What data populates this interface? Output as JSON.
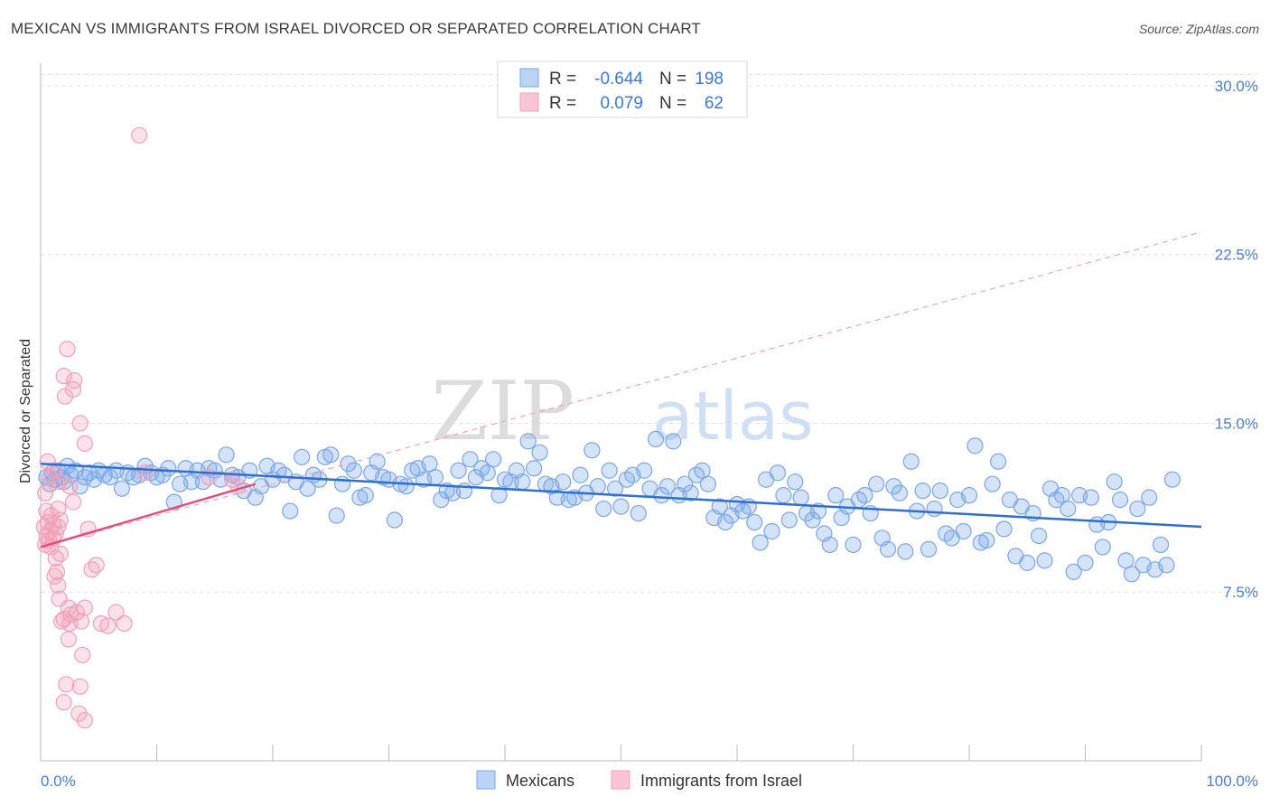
{
  "title": "MEXICAN VS IMMIGRANTS FROM ISRAEL DIVORCED OR SEPARATED CORRELATION CHART",
  "source": "Source: ZipAtlas.com",
  "watermark": {
    "zip": "ZIP",
    "atlas": "atlas"
  },
  "chart_data": {
    "type": "scatter",
    "title": "MEXICAN VS IMMIGRANTS FROM ISRAEL DIVORCED OR SEPARATED CORRELATION CHART",
    "ylabel": "Divorced or Separated",
    "xlim": [
      0,
      100
    ],
    "ylim": [
      0,
      31
    ],
    "x_tick_labels": [
      "0.0%",
      "100.0%"
    ],
    "y_ticks": [
      7.5,
      15.0,
      22.5,
      30.0
    ],
    "y_tick_labels": [
      "7.5%",
      "15.0%",
      "22.5%",
      "30.0%"
    ],
    "grid": true,
    "legend": {
      "placement": "top-center",
      "r_label": "R =",
      "n_label": "N =",
      "entries": [
        {
          "r": "-0.644",
          "n": "198"
        },
        {
          "r": "0.079",
          "n": "62"
        }
      ]
    },
    "bottom_legend": [
      "Mexicans",
      "Immigrants from Israel"
    ],
    "colors": {
      "mexicans": "#7aa7e8",
      "mexicans_line": "#2f6fd0",
      "israel": "#f2a0b8",
      "israel_line": "#e0507a"
    },
    "series": [
      {
        "name": "Mexicans",
        "trend": {
          "x": [
            0,
            100
          ],
          "y": [
            13.2,
            10.4
          ]
        },
        "points": [
          [
            0.5,
            12.6
          ],
          [
            0.8,
            12.3
          ],
          [
            1.0,
            12.8
          ],
          [
            1.2,
            12.5
          ],
          [
            1.5,
            12.9
          ],
          [
            1.8,
            12.6
          ],
          [
            2.0,
            12.4
          ],
          [
            2.3,
            13.1
          ],
          [
            2.6,
            12.7
          ],
          [
            3.0,
            12.9
          ],
          [
            3.4,
            12.2
          ],
          [
            3.8,
            12.6
          ],
          [
            4.2,
            12.8
          ],
          [
            4.6,
            12.5
          ],
          [
            5.0,
            12.9
          ],
          [
            5.5,
            12.7
          ],
          [
            6.0,
            12.6
          ],
          [
            6.5,
            12.9
          ],
          [
            7.0,
            12.1
          ],
          [
            7.5,
            12.8
          ],
          [
            8.0,
            12.6
          ],
          [
            8.5,
            12.7
          ],
          [
            9.0,
            13.1
          ],
          [
            9.5,
            12.8
          ],
          [
            10.0,
            12.6
          ],
          [
            10.5,
            12.7
          ],
          [
            11.0,
            13.0
          ],
          [
            11.5,
            11.5
          ],
          [
            12.0,
            12.3
          ],
          [
            12.5,
            13.0
          ],
          [
            13.0,
            12.4
          ],
          [
            13.5,
            12.9
          ],
          [
            14.0,
            12.4
          ],
          [
            14.5,
            13.0
          ],
          [
            15.0,
            12.9
          ],
          [
            15.5,
            12.5
          ],
          [
            16.0,
            13.6
          ],
          [
            16.5,
            12.7
          ],
          [
            17.0,
            12.6
          ],
          [
            17.5,
            12.0
          ],
          [
            18.0,
            12.9
          ],
          [
            18.5,
            11.7
          ],
          [
            19.0,
            12.2
          ],
          [
            19.5,
            13.1
          ],
          [
            20.0,
            12.5
          ],
          [
            20.5,
            12.9
          ],
          [
            21.0,
            12.7
          ],
          [
            21.5,
            11.1
          ],
          [
            22.0,
            12.4
          ],
          [
            22.5,
            13.5
          ],
          [
            23.0,
            12.1
          ],
          [
            23.5,
            12.7
          ],
          [
            24.0,
            12.5
          ],
          [
            24.5,
            13.5
          ],
          [
            25.0,
            13.6
          ],
          [
            25.5,
            10.9
          ],
          [
            26.0,
            12.3
          ],
          [
            26.5,
            13.2
          ],
          [
            27.0,
            12.9
          ],
          [
            27.5,
            11.7
          ],
          [
            28.0,
            11.8
          ],
          [
            28.5,
            12.8
          ],
          [
            29.0,
            13.3
          ],
          [
            29.5,
            12.6
          ],
          [
            30.0,
            12.5
          ],
          [
            30.5,
            10.7
          ],
          [
            31.0,
            12.3
          ],
          [
            31.5,
            12.2
          ],
          [
            32.0,
            12.9
          ],
          [
            32.5,
            13.0
          ],
          [
            33.0,
            12.5
          ],
          [
            33.5,
            13.2
          ],
          [
            34.0,
            12.6
          ],
          [
            34.5,
            11.6
          ],
          [
            35.0,
            12.0
          ],
          [
            35.5,
            11.9
          ],
          [
            36.0,
            12.9
          ],
          [
            36.5,
            12.0
          ],
          [
            37.0,
            13.4
          ],
          [
            37.5,
            12.6
          ],
          [
            38.0,
            13.0
          ],
          [
            38.5,
            12.8
          ],
          [
            39.0,
            13.4
          ],
          [
            39.5,
            11.8
          ],
          [
            40.0,
            12.5
          ],
          [
            40.5,
            12.4
          ],
          [
            41.0,
            12.9
          ],
          [
            41.5,
            12.4
          ],
          [
            42.0,
            14.2
          ],
          [
            42.5,
            13.0
          ],
          [
            43.0,
            13.7
          ],
          [
            43.5,
            12.3
          ],
          [
            44.0,
            12.2
          ],
          [
            44.5,
            11.7
          ],
          [
            45.0,
            12.4
          ],
          [
            45.5,
            11.6
          ],
          [
            46.0,
            11.7
          ],
          [
            46.5,
            12.7
          ],
          [
            47.0,
            11.9
          ],
          [
            47.5,
            13.8
          ],
          [
            48.0,
            12.2
          ],
          [
            48.5,
            11.2
          ],
          [
            49.0,
            12.9
          ],
          [
            49.5,
            12.1
          ],
          [
            50.0,
            11.3
          ],
          [
            50.5,
            12.5
          ],
          [
            51.0,
            12.7
          ],
          [
            51.5,
            11.0
          ],
          [
            52.0,
            12.9
          ],
          [
            52.5,
            12.1
          ],
          [
            53.0,
            14.3
          ],
          [
            53.5,
            11.8
          ],
          [
            54.0,
            12.2
          ],
          [
            54.5,
            14.2
          ],
          [
            55.0,
            11.8
          ],
          [
            55.5,
            12.3
          ],
          [
            56.0,
            11.9
          ],
          [
            56.5,
            12.7
          ],
          [
            57.0,
            12.9
          ],
          [
            57.5,
            12.3
          ],
          [
            58.0,
            10.8
          ],
          [
            58.5,
            11.3
          ],
          [
            59.0,
            10.6
          ],
          [
            59.5,
            10.9
          ],
          [
            60.0,
            11.4
          ],
          [
            60.5,
            11.1
          ],
          [
            61.0,
            11.3
          ],
          [
            61.5,
            10.6
          ],
          [
            62.0,
            9.7
          ],
          [
            62.5,
            12.5
          ],
          [
            63.0,
            10.2
          ],
          [
            63.5,
            12.8
          ],
          [
            64.0,
            11.8
          ],
          [
            64.5,
            10.7
          ],
          [
            65.0,
            12.4
          ],
          [
            65.5,
            11.7
          ],
          [
            66.0,
            11.0
          ],
          [
            66.5,
            10.7
          ],
          [
            67.0,
            11.1
          ],
          [
            67.5,
            10.1
          ],
          [
            68.0,
            9.6
          ],
          [
            68.5,
            11.8
          ],
          [
            69.0,
            10.8
          ],
          [
            69.5,
            11.3
          ],
          [
            70.0,
            9.6
          ],
          [
            70.5,
            11.6
          ],
          [
            71.0,
            11.8
          ],
          [
            71.5,
            11.0
          ],
          [
            72.0,
            12.3
          ],
          [
            72.5,
            9.9
          ],
          [
            73.0,
            9.4
          ],
          [
            73.5,
            12.2
          ],
          [
            74.0,
            11.9
          ],
          [
            74.5,
            9.3
          ],
          [
            75.0,
            13.3
          ],
          [
            75.5,
            11.1
          ],
          [
            76.0,
            12.0
          ],
          [
            76.5,
            9.4
          ],
          [
            77.0,
            11.2
          ],
          [
            77.5,
            12.0
          ],
          [
            78.0,
            10.1
          ],
          [
            78.5,
            9.9
          ],
          [
            79.0,
            11.6
          ],
          [
            79.5,
            10.2
          ],
          [
            80.0,
            11.8
          ],
          [
            80.5,
            14.0
          ],
          [
            81.0,
            9.7
          ],
          [
            81.5,
            9.8
          ],
          [
            82.0,
            12.3
          ],
          [
            82.5,
            13.3
          ],
          [
            83.0,
            10.3
          ],
          [
            83.5,
            11.6
          ],
          [
            84.0,
            9.1
          ],
          [
            84.5,
            11.3
          ],
          [
            85.0,
            8.8
          ],
          [
            85.5,
            11.0
          ],
          [
            86.0,
            10.0
          ],
          [
            86.5,
            8.9
          ],
          [
            87.0,
            12.1
          ],
          [
            87.5,
            11.6
          ],
          [
            88.0,
            11.8
          ],
          [
            88.5,
            11.2
          ],
          [
            89.0,
            8.4
          ],
          [
            89.5,
            11.8
          ],
          [
            90.0,
            8.8
          ],
          [
            90.5,
            11.7
          ],
          [
            91.0,
            10.5
          ],
          [
            91.5,
            9.5
          ],
          [
            92.0,
            10.6
          ],
          [
            92.5,
            12.4
          ],
          [
            93.0,
            11.6
          ],
          [
            93.5,
            8.9
          ],
          [
            94.0,
            8.3
          ],
          [
            94.5,
            11.2
          ],
          [
            95.0,
            8.7
          ],
          [
            95.5,
            11.7
          ],
          [
            96.0,
            8.5
          ],
          [
            96.5,
            9.6
          ],
          [
            97.0,
            8.7
          ],
          [
            97.5,
            12.5
          ]
        ]
      },
      {
        "name": "Immigrants from Israel",
        "trend": {
          "x": [
            0,
            18.5
          ],
          "y": [
            9.5,
            12.3
          ]
        },
        "trend_extended": {
          "x": [
            0,
            100
          ],
          "y": [
            9.5,
            23.5
          ]
        },
        "points": [
          [
            8.5,
            27.8
          ],
          [
            2.3,
            18.3
          ],
          [
            2.0,
            17.1
          ],
          [
            2.9,
            16.9
          ],
          [
            2.8,
            16.5
          ],
          [
            2.1,
            16.2
          ],
          [
            3.4,
            15.0
          ],
          [
            3.8,
            14.1
          ],
          [
            0.6,
            13.3
          ],
          [
            1.2,
            12.9
          ],
          [
            0.8,
            12.6
          ],
          [
            1.6,
            12.4
          ],
          [
            2.5,
            12.2
          ],
          [
            0.4,
            11.9
          ],
          [
            2.8,
            11.5
          ],
          [
            1.5,
            11.2
          ],
          [
            0.5,
            11.1
          ],
          [
            0.9,
            10.9
          ],
          [
            1.7,
            10.7
          ],
          [
            0.6,
            10.6
          ],
          [
            1.1,
            10.5
          ],
          [
            0.3,
            10.4
          ],
          [
            1.5,
            10.4
          ],
          [
            4.1,
            10.3
          ],
          [
            0.8,
            10.2
          ],
          [
            1.3,
            10.1
          ],
          [
            0.5,
            10.0
          ],
          [
            1.1,
            9.9
          ],
          [
            0.7,
            9.8
          ],
          [
            0.4,
            9.6
          ],
          [
            0.9,
            9.5
          ],
          [
            1.7,
            9.2
          ],
          [
            1.3,
            9.0
          ],
          [
            4.8,
            8.7
          ],
          [
            4.4,
            8.5
          ],
          [
            1.4,
            8.4
          ],
          [
            1.2,
            8.2
          ],
          [
            1.5,
            7.8
          ],
          [
            1.6,
            7.2
          ],
          [
            2.4,
            6.8
          ],
          [
            3.8,
            6.8
          ],
          [
            3.1,
            6.6
          ],
          [
            2.6,
            6.5
          ],
          [
            2.0,
            6.3
          ],
          [
            6.5,
            6.6
          ],
          [
            1.8,
            6.2
          ],
          [
            3.5,
            6.2
          ],
          [
            2.5,
            6.1
          ],
          [
            5.2,
            6.1
          ],
          [
            7.2,
            6.1
          ],
          [
            5.8,
            6.0
          ],
          [
            2.4,
            5.4
          ],
          [
            3.6,
            4.7
          ],
          [
            2.2,
            3.4
          ],
          [
            3.4,
            3.3
          ],
          [
            2.0,
            2.6
          ],
          [
            3.3,
            2.1
          ],
          [
            3.8,
            1.8
          ],
          [
            9.0,
            12.8
          ],
          [
            14.5,
            12.6
          ],
          [
            16.5,
            12.5
          ],
          [
            17.0,
            12.2
          ]
        ]
      }
    ]
  }
}
